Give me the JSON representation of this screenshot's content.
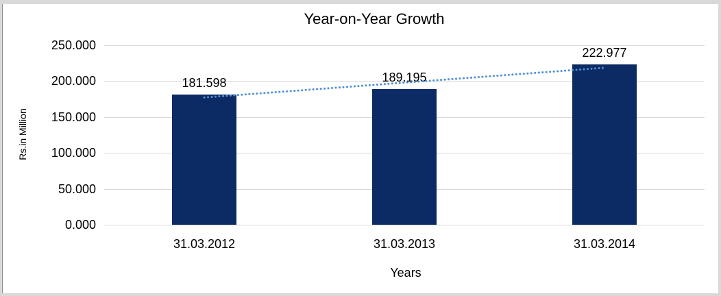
{
  "frame": {
    "edge_color": "#d9d9d9",
    "left_line_color": "#8c8c8c",
    "background": "#ffffff"
  },
  "chart_data": {
    "type": "bar",
    "title": "Year-on-Year Growth",
    "xlabel": "Years",
    "ylabel": "Rs.in Million",
    "categories": [
      "31.03.2012",
      "31.03.2013",
      "31.03.2014"
    ],
    "values": [
      181.598,
      189.195,
      222.977
    ],
    "value_labels": [
      "181.598",
      "189.195",
      "222.977"
    ],
    "y_ticks": [
      {
        "value": 0,
        "label": "0.000"
      },
      {
        "value": 50,
        "label": "50.000"
      },
      {
        "value": 100,
        "label": "100.000"
      },
      {
        "value": 150,
        "label": "150.000"
      },
      {
        "value": 200,
        "label": "200.000"
      },
      {
        "value": 250,
        "label": "250.000"
      }
    ],
    "ylim": [
      0,
      250
    ],
    "grid": true,
    "legend": "none",
    "bar_color": "#0c2a63",
    "gridline_color": "#d9d9d9",
    "text_color": "#000000",
    "trendline": {
      "type": "linear",
      "style": "dotted",
      "color": "#4f90d5"
    }
  }
}
